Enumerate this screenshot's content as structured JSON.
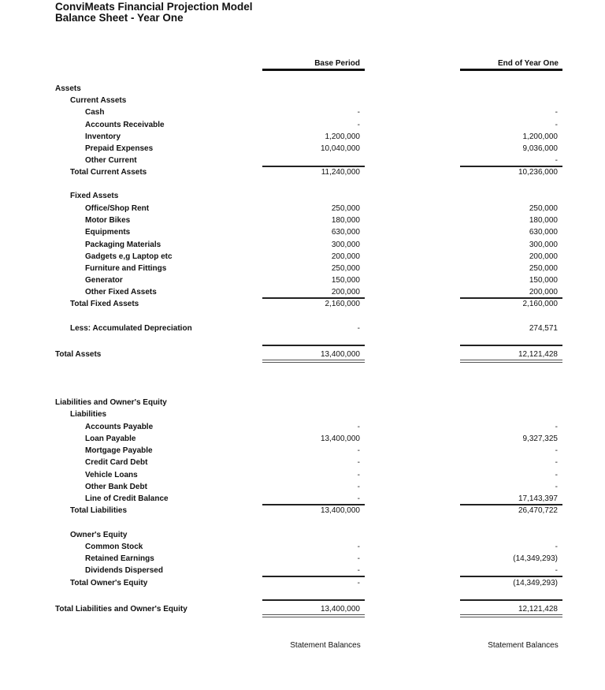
{
  "header": {
    "title": "ConviMeats Financial Projection Model",
    "subtitle": "Balance Sheet - Year One"
  },
  "columns": {
    "base": "Base Period",
    "end": "End of Year One"
  },
  "rows": [
    {
      "label": "Assets",
      "level": 0
    },
    {
      "label": "Current Assets",
      "level": 1
    },
    {
      "label": "Cash",
      "level": 2,
      "base": "-",
      "end": "-"
    },
    {
      "label": "Accounts Receivable",
      "level": 2,
      "base": "-",
      "end": "-"
    },
    {
      "label": "Inventory",
      "level": 2,
      "base": "1,200,000",
      "end": "1,200,000"
    },
    {
      "label": "Prepaid Expenses",
      "level": 2,
      "base": "10,040,000",
      "end": "9,036,000"
    },
    {
      "label": "Other Current",
      "level": 2,
      "base": "",
      "end": "-"
    },
    {
      "label": "Total Current Assets",
      "level": 1,
      "base": "11,240,000",
      "end": "10,236,000"
    },
    {
      "label": "Fixed Assets",
      "level": 1
    },
    {
      "label": "Office/Shop Rent",
      "level": 2,
      "base": "250,000",
      "end": "250,000"
    },
    {
      "label": "Motor Bikes",
      "level": 2,
      "base": "180,000",
      "end": "180,000"
    },
    {
      "label": "Equipments",
      "level": 2,
      "base": "630,000",
      "end": "630,000"
    },
    {
      "label": "Packaging Materials",
      "level": 2,
      "base": "300,000",
      "end": "300,000"
    },
    {
      "label": "Gadgets e,g Laptop etc",
      "level": 2,
      "base": "200,000",
      "end": "200,000"
    },
    {
      "label": "Furniture and Fittings",
      "level": 2,
      "base": "250,000",
      "end": "250,000"
    },
    {
      "label": "Generator",
      "level": 2,
      "base": "150,000",
      "end": "150,000"
    },
    {
      "label": "Other Fixed Assets",
      "level": 2,
      "base": "200,000",
      "end": "200,000"
    },
    {
      "label": "Total Fixed Assets",
      "level": 1,
      "base": "2,160,000",
      "end": "2,160,000"
    },
    {
      "label": "Less:  Accumulated Depreciation",
      "level": 1,
      "base": "-",
      "end": "274,571"
    },
    {
      "label": "Total Assets",
      "level": 0,
      "base": "13,400,000",
      "end": "12,121,428"
    },
    {
      "label": "Liabilities and Owner's Equity",
      "level": 0
    },
    {
      "label": "Liabilities",
      "level": 1
    },
    {
      "label": "Accounts Payable",
      "level": 2,
      "base": "-",
      "end": "-"
    },
    {
      "label": "Loan Payable",
      "level": 2,
      "base": "13,400,000",
      "end": "9,327,325"
    },
    {
      "label": "Mortgage Payable",
      "level": 2,
      "base": "-",
      "end": "-"
    },
    {
      "label": "Credit Card Debt",
      "level": 2,
      "base": "-",
      "end": "-"
    },
    {
      "label": "Vehicle Loans",
      "level": 2,
      "base": "-",
      "end": "-"
    },
    {
      "label": "Other Bank Debt",
      "level": 2,
      "base": "-",
      "end": "-"
    },
    {
      "label": "Line of Credit Balance",
      "level": 2,
      "base": "-",
      "end": "17,143,397"
    },
    {
      "label": "Total Liabilities",
      "level": 1,
      "base": "13,400,000",
      "end": "26,470,722"
    },
    {
      "label": "Owner's Equity",
      "level": 1
    },
    {
      "label": "Common Stock",
      "level": 2,
      "base": "-",
      "end": "-"
    },
    {
      "label": "Retained Earnings",
      "level": 2,
      "base": "-",
      "end": "(14,349,293)"
    },
    {
      "label": "Dividends Dispersed",
      "level": 2,
      "base": "-",
      "end": "-"
    },
    {
      "label": "Total Owner's Equity",
      "level": 1,
      "base": "-",
      "end": "(14,349,293)"
    },
    {
      "label": "Total Liabilities and Owner's Equity",
      "level": 0,
      "base": "13,400,000",
      "end": "12,121,428"
    }
  ],
  "footer": {
    "base": "Statement Balances",
    "end": "Statement Balances"
  }
}
